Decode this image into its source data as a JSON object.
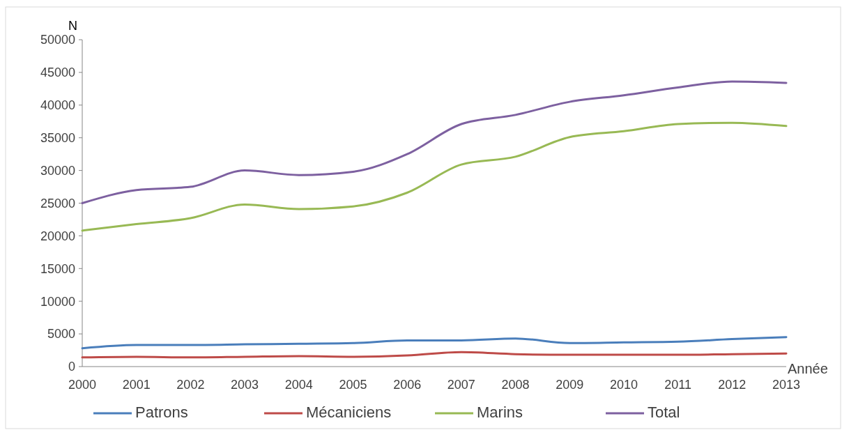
{
  "chart_data": {
    "type": "line",
    "ylabel": "N",
    "xlabel": "Année",
    "categories": [
      "2000",
      "2001",
      "2002",
      "2003",
      "2004",
      "2005",
      "2006",
      "2007",
      "2008",
      "2009",
      "2010",
      "2011",
      "2012",
      "2013"
    ],
    "ylim": [
      0,
      50000
    ],
    "yticks": [
      0,
      5000,
      10000,
      15000,
      20000,
      25000,
      30000,
      35000,
      40000,
      45000,
      50000
    ],
    "grid": false,
    "legend": "bottom",
    "marker": "none",
    "line_style": "solid",
    "series": [
      {
        "name": "Patrons",
        "color": "#4a7ebb",
        "values": [
          2800,
          3300,
          3300,
          3400,
          3500,
          3600,
          4000,
          4000,
          4300,
          3600,
          3700,
          3800,
          4200,
          4500
        ]
      },
      {
        "name": "Mécaniciens",
        "color": "#be4b48",
        "values": [
          1400,
          1500,
          1400,
          1500,
          1600,
          1500,
          1700,
          2200,
          1900,
          1800,
          1800,
          1800,
          1900,
          2000
        ]
      },
      {
        "name": "Marins",
        "color": "#98b954",
        "values": [
          20800,
          21800,
          22700,
          24800,
          24100,
          24500,
          26600,
          30900,
          32100,
          35100,
          36000,
          37100,
          37300,
          36800
        ]
      },
      {
        "name": "Total",
        "color": "#7d60a0",
        "values": [
          25000,
          27000,
          27500,
          30000,
          29300,
          29800,
          32500,
          37100,
          38500,
          40500,
          41500,
          42700,
          43600,
          43400
        ]
      }
    ]
  }
}
